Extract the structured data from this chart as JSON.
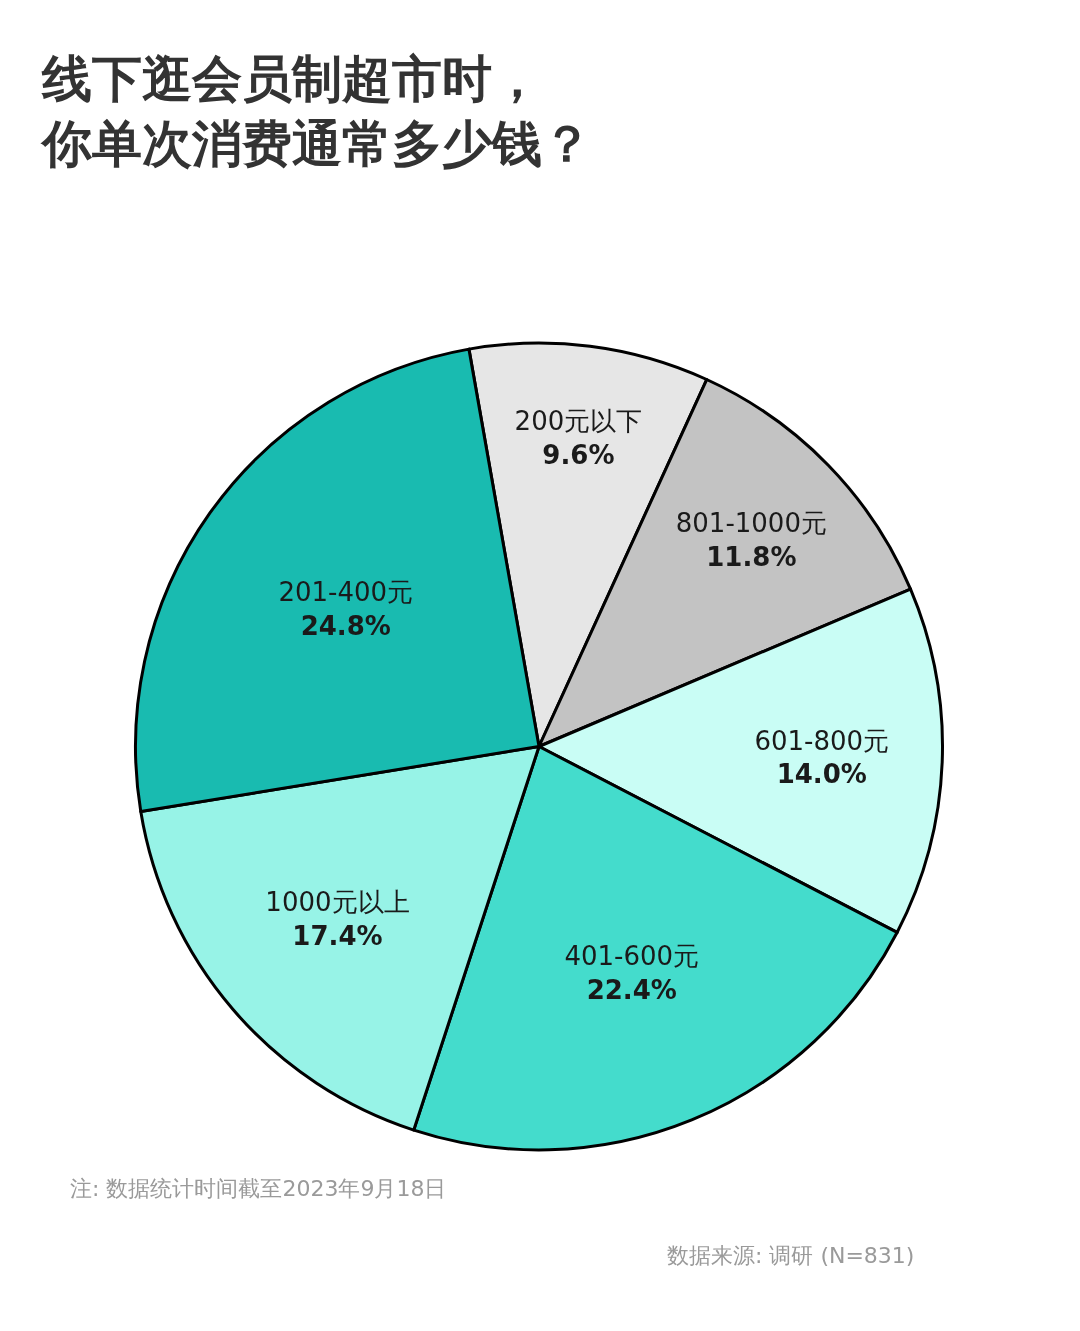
{
  "chart_data": {
    "type": "pie",
    "title": "线下逛会员制超市时，你单次消费通常多少钱？",
    "categories": [
      "200元以下",
      "801-1000元",
      "601-800元",
      "401-600元",
      "1000元以上",
      "201-400元"
    ],
    "values": [
      9.6,
      11.8,
      14.0,
      22.4,
      17.4,
      24.8
    ],
    "value_labels": [
      "9.6%",
      "11.8%",
      "14.0%",
      "22.4%",
      "17.4%",
      "24.8%"
    ],
    "colors": [
      "#e6e6e6",
      "#c3c3c3",
      "#c9fdf5",
      "#44dccc",
      "#97f3e7",
      "#19bbb0"
    ],
    "annotations": [
      "注: 数据统计时间截至2023年9月18日",
      "数据来源: 调研 (N=831)"
    ]
  }
}
